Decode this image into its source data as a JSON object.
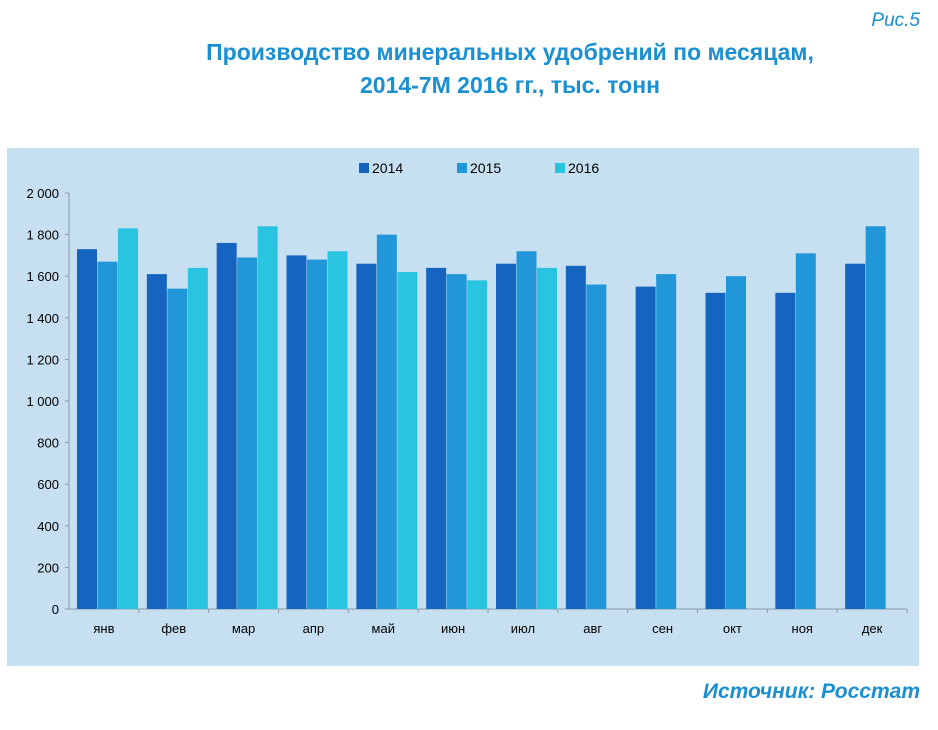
{
  "figure_label": "Рис.5",
  "title_line1": "Производство минеральных удобрений по месяцам,",
  "title_line2": "2014-7М 2016 гг., тыс. тонн",
  "source": "Источник: Росстат",
  "colors": {
    "2014": "#1565c0",
    "2015": "#2196d8",
    "2016": "#29c5e0",
    "panel": "#c7e0f1"
  },
  "chart_data": {
    "type": "bar",
    "categories": [
      "янв",
      "фев",
      "мар",
      "апр",
      "май",
      "июн",
      "июл",
      "авг",
      "сен",
      "окт",
      "ноя",
      "дек"
    ],
    "series": [
      {
        "name": "2014",
        "values": [
          1730,
          1610,
          1760,
          1700,
          1660,
          1640,
          1660,
          1650,
          1550,
          1520,
          1520,
          1660
        ]
      },
      {
        "name": "2015",
        "values": [
          1670,
          1540,
          1690,
          1680,
          1800,
          1610,
          1720,
          1560,
          1610,
          1600,
          1710,
          1840
        ]
      },
      {
        "name": "2016",
        "values": [
          1830,
          1640,
          1840,
          1720,
          1620,
          1580,
          1640,
          null,
          null,
          null,
          null,
          null
        ]
      }
    ],
    "y_ticks": [
      "0",
      "200",
      "400",
      "600",
      "800",
      "1 000",
      "1 200",
      "1 400",
      "1 600",
      "1 800",
      "2 000"
    ],
    "ylim": [
      0,
      2000
    ],
    "legend_position": "top-center",
    "grid": false
  }
}
